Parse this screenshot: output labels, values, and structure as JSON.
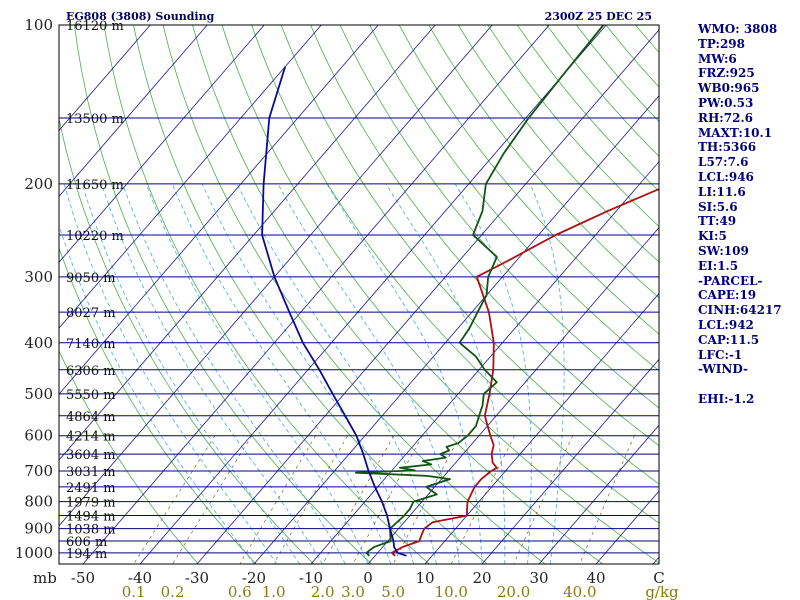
{
  "chart_data": {
    "type": "line",
    "title_left": "EG808 (3808) Sounding",
    "title_right": "2300Z 25 DEC 25",
    "pressure_ticks": [
      100,
      200,
      300,
      400,
      500,
      600,
      700,
      800,
      900,
      1000
    ],
    "pressure_unit": "mb",
    "temperature_ticks": [
      -50,
      -40,
      -30,
      -20,
      -10,
      0,
      10,
      20,
      30,
      40
    ],
    "temperature_end_label": "C",
    "mixing_ratio_ticks": [
      "0.1",
      "0.2",
      "0.6",
      "1.0",
      "2.0",
      "3.0",
      "5.0",
      "10.0",
      "20.0",
      "40.0"
    ],
    "mixing_ratio_unit": "g/kg",
    "height_levels": [
      {
        "p": 100,
        "label": "16120 m"
      },
      {
        "p": 150,
        "label": "13500 m"
      },
      {
        "p": 200,
        "label": "11650 m"
      },
      {
        "p": 250,
        "label": "10220 m"
      },
      {
        "p": 300,
        "label": "9050 m"
      },
      {
        "p": 350,
        "label": "8027 m"
      },
      {
        "p": 400,
        "label": "7140 m"
      },
      {
        "p": 450,
        "label": "6306 m"
      },
      {
        "p": 500,
        "label": "5550 m"
      },
      {
        "p": 550,
        "label": "4864 m"
      },
      {
        "p": 600,
        "label": "4214 m"
      },
      {
        "p": 650,
        "label": "3604 m"
      },
      {
        "p": 700,
        "label": "3031 m"
      },
      {
        "p": 750,
        "label": "2491 m"
      },
      {
        "p": 800,
        "label": "1979 m"
      },
      {
        "p": 850,
        "label": "1494 m"
      },
      {
        "p": 900,
        "label": "1038 m"
      },
      {
        "p": 950,
        "label": "606 m"
      },
      {
        "p": 1000,
        "label": "194 m"
      }
    ],
    "series": [
      {
        "name": "Temperature",
        "color": "#aa1111",
        "points": [
          [
            1013,
            3.5
          ],
          [
            1000,
            2.5
          ],
          [
            975,
            3.5
          ],
          [
            950,
            5.5
          ],
          [
            925,
            5.0
          ],
          [
            900,
            4.5
          ],
          [
            875,
            5.0
          ],
          [
            850,
            10.0
          ],
          [
            825,
            9.0
          ],
          [
            800,
            8.0
          ],
          [
            775,
            7.5
          ],
          [
            750,
            7.0
          ],
          [
            725,
            7.0
          ],
          [
            700,
            7.5
          ],
          [
            690,
            8.0
          ],
          [
            675,
            6.5
          ],
          [
            650,
            5.0
          ],
          [
            625,
            4.0
          ],
          [
            600,
            2.0
          ],
          [
            550,
            -2.0
          ],
          [
            500,
            -4.5
          ],
          [
            450,
            -7.5
          ],
          [
            400,
            -11.5
          ],
          [
            350,
            -17.0
          ],
          [
            300,
            -24.5
          ],
          [
            280,
            -21.5
          ],
          [
            250,
            -17.0
          ],
          [
            225,
            -11.5
          ],
          [
            200,
            -4.5
          ],
          [
            150,
            0.5
          ],
          [
            125,
            3.5
          ],
          [
            100,
            7.0
          ]
        ]
      },
      {
        "name": "Dewpoint",
        "color": "#115511",
        "points": [
          [
            1013,
            -1.0
          ],
          [
            1000,
            -2.0
          ],
          [
            975,
            -1.5
          ],
          [
            950,
            0.5
          ],
          [
            925,
            -0.5
          ],
          [
            900,
            -1.5
          ],
          [
            850,
            -1.0
          ],
          [
            825,
            -1.0
          ],
          [
            800,
            -1.5
          ],
          [
            775,
            1.5
          ],
          [
            750,
            -1.5
          ],
          [
            725,
            1.5
          ],
          [
            715,
            -3.0
          ],
          [
            705,
            -16.0
          ],
          [
            698,
            -6.0
          ],
          [
            690,
            -9.0
          ],
          [
            680,
            -4.0
          ],
          [
            670,
            -6.0
          ],
          [
            660,
            -2.5
          ],
          [
            650,
            -4.0
          ],
          [
            640,
            -3.0
          ],
          [
            630,
            -4.0
          ],
          [
            620,
            -2.5
          ],
          [
            600,
            -2.0
          ],
          [
            575,
            -2.0
          ],
          [
            550,
            -3.0
          ],
          [
            525,
            -4.0
          ],
          [
            500,
            -5.5
          ],
          [
            475,
            -5.0
          ],
          [
            450,
            -9.0
          ],
          [
            425,
            -12.5
          ],
          [
            400,
            -17.5
          ],
          [
            375,
            -18.0
          ],
          [
            350,
            -19.0
          ],
          [
            325,
            -20.0
          ],
          [
            300,
            -22.5
          ],
          [
            275,
            -24.0
          ],
          [
            250,
            -31.5
          ],
          [
            225,
            -33.5
          ],
          [
            200,
            -37.0
          ],
          [
            175,
            -38.5
          ],
          [
            150,
            -39.5
          ],
          [
            125,
            -40.0
          ],
          [
            100,
            -40.5
          ]
        ]
      },
      {
        "name": "Parcel",
        "color": "#0a0a99",
        "points": [
          [
            1013,
            5.5
          ],
          [
            1000,
            3.5
          ],
          [
            975,
            2.0
          ],
          [
            950,
            1.0
          ],
          [
            900,
            -1.5
          ],
          [
            850,
            -4.0
          ],
          [
            800,
            -7.0
          ],
          [
            750,
            -10.5
          ],
          [
            700,
            -14.0
          ],
          [
            650,
            -17.5
          ],
          [
            600,
            -21.5
          ],
          [
            550,
            -26.5
          ],
          [
            500,
            -32.0
          ],
          [
            450,
            -38.0
          ],
          [
            400,
            -45.0
          ],
          [
            350,
            -52.0
          ],
          [
            300,
            -60.0
          ],
          [
            250,
            -68.5
          ],
          [
            200,
            -76.0
          ],
          [
            150,
            -85.0
          ],
          [
            120,
            -90.0
          ]
        ]
      }
    ],
    "indices": [
      "WMO: 3808",
      "TP:298",
      "MW:6",
      "FRZ:925",
      "WB0:965",
      "PW:0.53",
      "RH:72.6",
      "MAXT:10.1",
      "TH:5366",
      "L57:7.6",
      "LCL:946",
      "LI:11.6",
      "SI:5.6",
      "TT:49",
      "KI:5",
      "SW:109",
      "EI:1.5",
      "-PARCEL-",
      "CAPE:19",
      "CINH:64217",
      "LCL:942",
      "CAP:11.5",
      "LFC:-1",
      "-WIND-",
      "",
      "EHI:-1.2"
    ],
    "colors": {
      "isobar": "#000088",
      "isotherm": "#1a1a88",
      "dry_adiabat": "#4cae4c",
      "moist_adiabat": "#44aadd",
      "mixing_ratio": "#776622",
      "frame": "#000000"
    }
  }
}
